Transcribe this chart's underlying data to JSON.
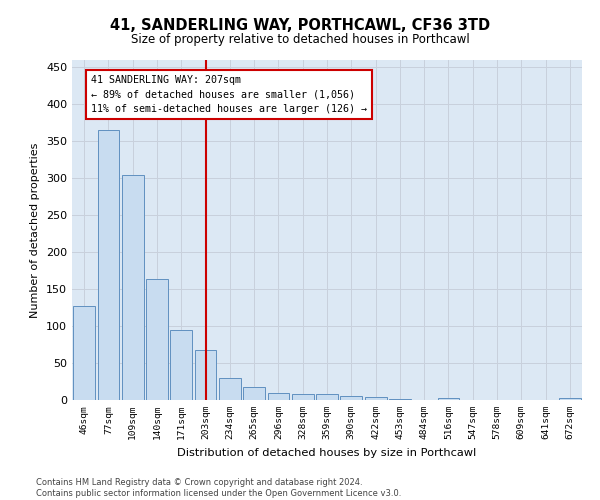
{
  "title": "41, SANDERLING WAY, PORTHCAWL, CF36 3TD",
  "subtitle": "Size of property relative to detached houses in Porthcawl",
  "xlabel": "Distribution of detached houses by size in Porthcawl",
  "ylabel": "Number of detached properties",
  "categories": [
    "46sqm",
    "77sqm",
    "109sqm",
    "140sqm",
    "171sqm",
    "203sqm",
    "234sqm",
    "265sqm",
    "296sqm",
    "328sqm",
    "359sqm",
    "390sqm",
    "422sqm",
    "453sqm",
    "484sqm",
    "516sqm",
    "547sqm",
    "578sqm",
    "609sqm",
    "641sqm",
    "672sqm"
  ],
  "values": [
    127,
    365,
    304,
    164,
    95,
    68,
    30,
    18,
    10,
    8,
    8,
    6,
    4,
    1,
    0,
    3,
    0,
    0,
    0,
    0,
    3
  ],
  "bar_color": "#c8dcf0",
  "bar_edge_color": "#6090c0",
  "vline_x_index": 5,
  "property_label": "41 SANDERLING WAY: 207sqm",
  "annotation_line1": "← 89% of detached houses are smaller (1,056)",
  "annotation_line2": "11% of semi-detached houses are larger (126) →",
  "annotation_box_color": "#ffffff",
  "annotation_box_edge_color": "#cc0000",
  "vline_color": "#cc0000",
  "ylim": [
    0,
    460
  ],
  "yticks": [
    0,
    50,
    100,
    150,
    200,
    250,
    300,
    350,
    400,
    450
  ],
  "grid_color": "#c8d0dc",
  "background_color": "#dce8f4",
  "footer_line1": "Contains HM Land Registry data © Crown copyright and database right 2024.",
  "footer_line2": "Contains public sector information licensed under the Open Government Licence v3.0."
}
